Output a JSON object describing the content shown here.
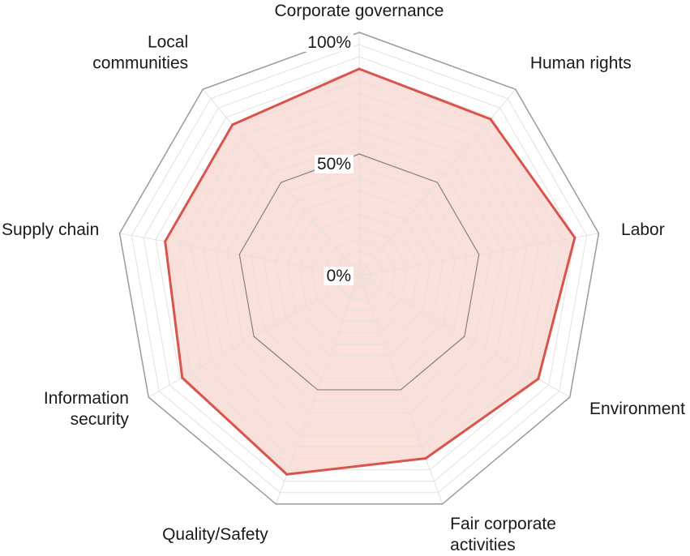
{
  "chart_data": {
    "type": "radar",
    "axes": [
      {
        "label": [
          "Corporate governance"
        ],
        "value": 85
      },
      {
        "label": [
          "Human rights"
        ],
        "value": 84
      },
      {
        "label": [
          "Labor"
        ],
        "value": 90
      },
      {
        "label": [
          "Environment"
        ],
        "value": 85
      },
      {
        "label": [
          "Fair corporate",
          "activities"
        ],
        "value": 80
      },
      {
        "label": [
          "Quality/Safety"
        ],
        "value": 87
      },
      {
        "label": [
          "Information",
          "security"
        ],
        "value": 84
      },
      {
        "label": [
          "Supply chain"
        ],
        "value": 81
      },
      {
        "label": [
          "Local",
          "communities"
        ],
        "value": 81
      }
    ],
    "ticks": [
      {
        "value": 0,
        "label": "0%"
      },
      {
        "value": 50,
        "label": "50%"
      },
      {
        "value": 100,
        "label": "100%"
      }
    ],
    "range": [
      0,
      100
    ],
    "minor_grid_step": 5,
    "grid": true,
    "colors": {
      "series_line": "#d9544d",
      "series_fill": "#f9e0da",
      "grid_minor": "#e6e0de",
      "grid_mid": "#8a7f7b",
      "grid_outer": "#9a9a9a"
    }
  }
}
